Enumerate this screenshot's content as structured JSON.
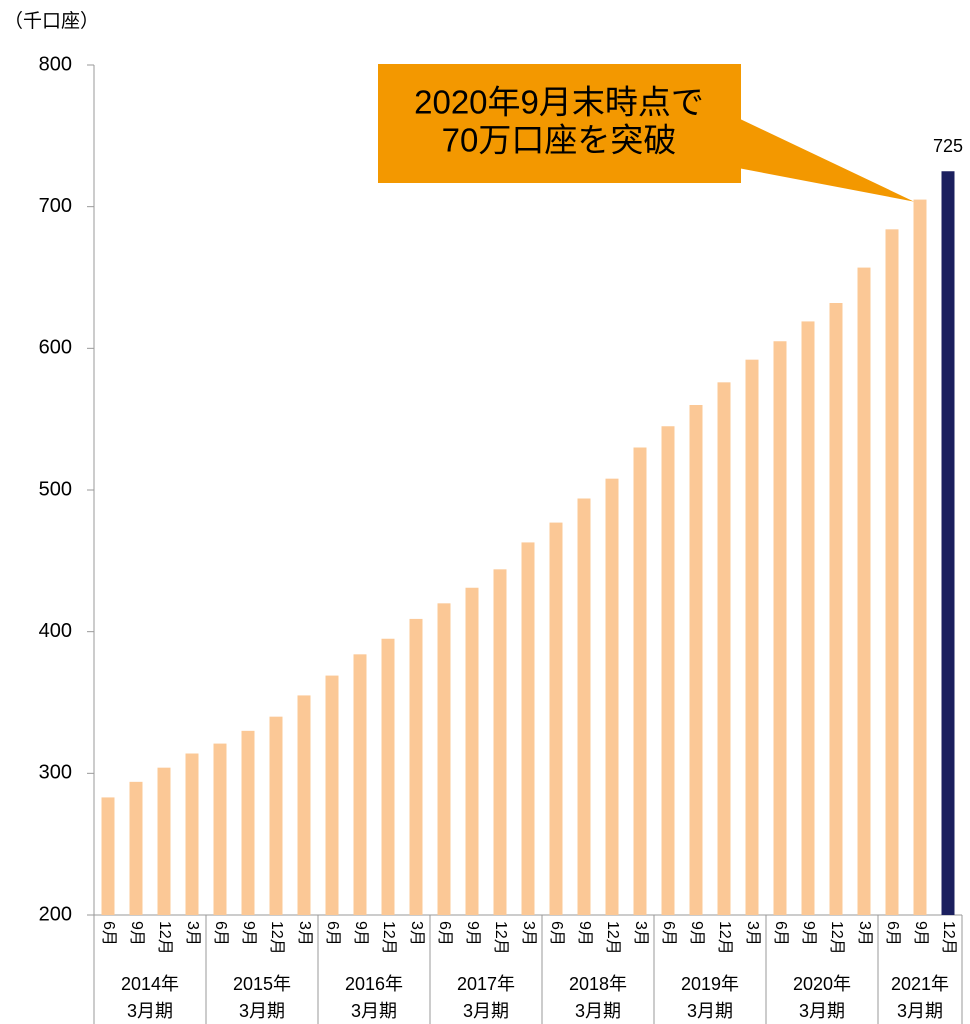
{
  "chart_data": {
    "type": "bar",
    "unit_label": "（千口座）",
    "categories": [
      "6月",
      "9月",
      "12月",
      "3月",
      "6月",
      "9月",
      "12月",
      "3月",
      "6月",
      "9月",
      "12月",
      "3月",
      "6月",
      "9月",
      "12月",
      "3月",
      "6月",
      "9月",
      "12月",
      "3月",
      "6月",
      "9月",
      "12月",
      "3月",
      "6月",
      "9月",
      "12月",
      "3月",
      "6月",
      "9月",
      "12月"
    ],
    "groups": [
      {
        "label": [
          "2014年",
          "3月期"
        ],
        "count": 4
      },
      {
        "label": [
          "2015年",
          "3月期"
        ],
        "count": 4
      },
      {
        "label": [
          "2016年",
          "3月期"
        ],
        "count": 4
      },
      {
        "label": [
          "2017年",
          "3月期"
        ],
        "count": 4
      },
      {
        "label": [
          "2018年",
          "3月期"
        ],
        "count": 4
      },
      {
        "label": [
          "2019年",
          "3月期"
        ],
        "count": 4
      },
      {
        "label": [
          "2020年",
          "3月期"
        ],
        "count": 4
      },
      {
        "label": [
          "2021年",
          "3月期"
        ],
        "count": 3
      }
    ],
    "values": [
      283,
      294,
      304,
      314,
      321,
      330,
      340,
      355,
      369,
      384,
      395,
      409,
      420,
      431,
      444,
      463,
      477,
      494,
      508,
      530,
      545,
      560,
      576,
      592,
      605,
      619,
      632,
      657,
      684,
      705,
      725
    ],
    "value_labels": [
      null,
      null,
      null,
      null,
      null,
      null,
      null,
      null,
      null,
      null,
      null,
      null,
      null,
      null,
      null,
      null,
      null,
      null,
      null,
      null,
      null,
      null,
      null,
      null,
      null,
      null,
      null,
      null,
      null,
      null,
      "725"
    ],
    "color": "#fbc896",
    "last_color": "#1b1f5e",
    "ylim": [
      200,
      800
    ],
    "yticks": [
      200,
      300,
      400,
      500,
      600,
      700,
      800
    ],
    "callout": {
      "lines": [
        "2020年9月末時点で",
        "70万口座を突破"
      ],
      "color": "#f39800"
    }
  }
}
